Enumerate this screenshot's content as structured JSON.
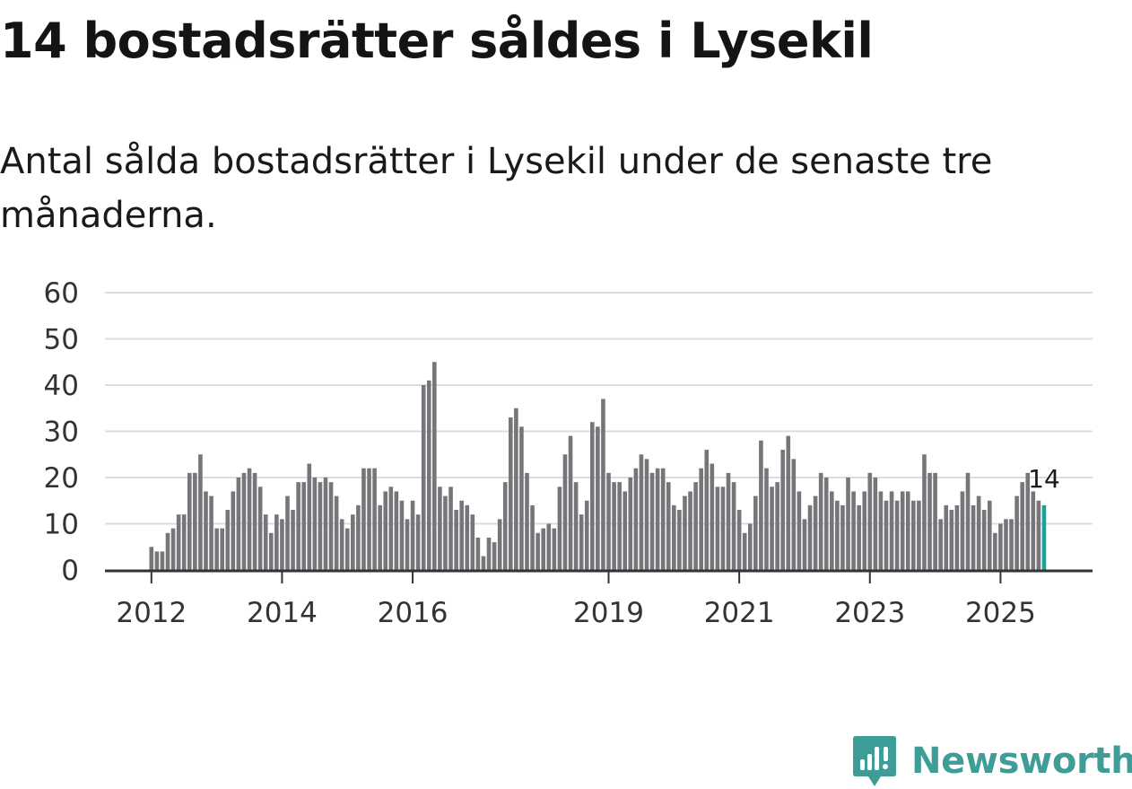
{
  "title": "14 bostadsrätter såldes i Lysekil",
  "subtitle": "Antal sålda bostadsrätter i Lysekil under de senaste tre månaderna.",
  "brand": {
    "name": "Newsworthy",
    "color": "#3f9d97",
    "icon": "newsworthy-logo-icon"
  },
  "colors": {
    "bar": "#76757a",
    "highlight": "#16a39a",
    "grid": "#dddddd",
    "axis": "#333333"
  },
  "chart_data": {
    "type": "bar",
    "title": "14 bostadsrätter såldes i Lysekil",
    "xlabel": "",
    "ylabel": "",
    "ylim": [
      0,
      60
    ],
    "yticks": [
      0,
      10,
      20,
      30,
      40,
      50,
      60
    ],
    "grid": true,
    "start": {
      "year": 2012,
      "month": 1
    },
    "xtick_labels": [
      {
        "label": "2012",
        "year": 2012
      },
      {
        "label": "2014",
        "year": 2014
      },
      {
        "label": "2016",
        "year": 2016
      },
      {
        "label": "2019",
        "year": 2019
      },
      {
        "label": "2021",
        "year": 2021
      },
      {
        "label": "2023",
        "year": 2023
      },
      {
        "label": "2025",
        "year": 2025
      }
    ],
    "values": [
      5,
      4,
      4,
      8,
      9,
      12,
      12,
      21,
      21,
      25,
      17,
      16,
      9,
      9,
      13,
      17,
      20,
      21,
      22,
      21,
      18,
      12,
      8,
      12,
      11,
      16,
      13,
      19,
      19,
      23,
      20,
      19,
      20,
      19,
      16,
      11,
      9,
      12,
      14,
      22,
      22,
      22,
      14,
      17,
      18,
      17,
      15,
      11,
      15,
      12,
      40,
      41,
      45,
      18,
      16,
      18,
      13,
      15,
      14,
      12,
      7,
      3,
      7,
      6,
      11,
      19,
      33,
      35,
      31,
      21,
      14,
      8,
      9,
      10,
      9,
      18,
      25,
      29,
      19,
      12,
      15,
      32,
      31,
      37,
      21,
      19,
      19,
      17,
      20,
      22,
      25,
      24,
      21,
      22,
      22,
      19,
      14,
      13,
      16,
      17,
      19,
      22,
      26,
      23,
      18,
      18,
      21,
      19,
      13,
      8,
      10,
      16,
      28,
      22,
      18,
      19,
      26,
      29,
      24,
      17,
      11,
      14,
      16,
      21,
      20,
      17,
      15,
      14,
      20,
      17,
      14,
      17,
      21,
      20,
      17,
      15,
      17,
      15,
      17,
      17,
      15,
      15,
      25,
      21,
      21,
      11,
      14,
      13,
      14,
      17,
      21,
      14,
      16,
      13,
      15,
      8,
      10,
      11,
      11,
      16,
      19,
      21,
      17,
      15,
      14
    ],
    "highlight_last": true,
    "last_value_label": "14"
  }
}
